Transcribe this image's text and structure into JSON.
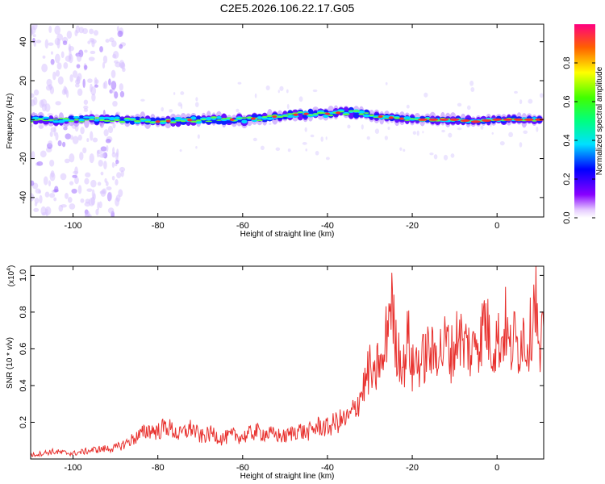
{
  "title": "C2E5.2026.106.22.17.G05",
  "colors": {
    "snr_line": "#e8322f",
    "ridge_core": "#ff2a2a",
    "background": "#ffffff"
  },
  "chart_data": [
    {
      "type": "heatmap",
      "xlabel": "Height of straight line (km)",
      "ylabel": "Frequency (Hz)",
      "xlim": [
        -110,
        11
      ],
      "ylim": [
        -50,
        49
      ],
      "x_ticks": [
        -100,
        -80,
        -60,
        -40,
        -20,
        0
      ],
      "x_tick_labels": [
        "-100",
        "-80",
        "-60",
        "-40",
        "-20",
        "0"
      ],
      "y_ticks": [
        -40,
        -20,
        0,
        20,
        40
      ],
      "y_tick_labels": [
        "-40",
        "-20",
        "0",
        "20",
        "40"
      ],
      "colorbar": {
        "label": "Normalized spectral amplitude",
        "colormap": "rainbow",
        "range": [
          0,
          1
        ],
        "ticks": [
          0.0,
          0.2,
          0.4,
          0.6,
          0.8
        ],
        "tick_labels": [
          "0.0",
          "0.2",
          "0.4",
          "0.6",
          "0.8"
        ]
      },
      "ridge": {
        "description": "frequency of spectral peak along height",
        "x": [
          -110,
          -100,
          -90,
          -80,
          -70,
          -60,
          -50,
          -45,
          -40,
          -35,
          -30,
          -25,
          -20,
          -15,
          -10,
          -5,
          0,
          5,
          10
        ],
        "y": [
          0,
          0,
          0,
          -1,
          0,
          0,
          2,
          3,
          3,
          4,
          2,
          1,
          0,
          0,
          0,
          -1,
          0,
          0,
          0
        ]
      }
    },
    {
      "type": "line",
      "xlabel": "Height of straight line (km)",
      "ylabel": "SNR (10 * v/v)",
      "y_scale_label": "(x10",
      "y_scale_exponent": "4",
      "y_scale_close": ")",
      "xlim": [
        -110,
        11
      ],
      "ylim": [
        0,
        1.05
      ],
      "x_ticks": [
        -100,
        -80,
        -60,
        -40,
        -20,
        0
      ],
      "x_tick_labels": [
        "-100",
        "-80",
        "-60",
        "-40",
        "-20",
        "0"
      ],
      "y_ticks": [
        0.2,
        0.4,
        0.6,
        0.8,
        1.0
      ],
      "y_tick_labels": [
        "0.2",
        "0.4",
        "0.6",
        "0.8",
        "1.0"
      ],
      "series": [
        {
          "x": [
            -110,
            -105,
            -100,
            -95,
            -90,
            -88,
            -85,
            -82,
            -80,
            -78,
            -75,
            -72,
            -70,
            -67,
            -65,
            -62,
            -60,
            -57,
            -55,
            -52,
            -50,
            -47,
            -45,
            -42,
            -40,
            -38,
            -35,
            -33,
            -31,
            -30,
            -29,
            -28,
            -27,
            -26,
            -25,
            -24,
            -23,
            -22,
            -21,
            -20,
            -19,
            -18,
            -17,
            -16,
            -15,
            -14,
            -13,
            -12,
            -11,
            -10,
            -9,
            -8,
            -7,
            -6,
            -5,
            -4,
            -3,
            -2,
            -1,
            0,
            1,
            2,
            3,
            4,
            5,
            6,
            7,
            8,
            9,
            10,
            11
          ],
          "y": [
            0.02,
            0.04,
            0.03,
            0.05,
            0.06,
            0.08,
            0.12,
            0.16,
            0.15,
            0.18,
            0.13,
            0.17,
            0.12,
            0.14,
            0.11,
            0.13,
            0.12,
            0.15,
            0.14,
            0.13,
            0.12,
            0.16,
            0.14,
            0.18,
            0.17,
            0.2,
            0.22,
            0.3,
            0.42,
            0.5,
            0.4,
            0.55,
            0.48,
            0.7,
            0.9,
            0.62,
            0.58,
            0.5,
            0.68,
            0.48,
            0.55,
            0.52,
            0.56,
            0.6,
            0.55,
            0.62,
            0.58,
            0.65,
            0.57,
            0.6,
            0.72,
            0.6,
            0.64,
            0.55,
            0.7,
            0.62,
            0.78,
            0.68,
            0.6,
            0.66,
            0.63,
            0.74,
            0.58,
            0.66,
            0.6,
            0.7,
            0.62,
            0.7,
            0.95,
            0.5,
            0.72
          ]
        }
      ]
    }
  ]
}
